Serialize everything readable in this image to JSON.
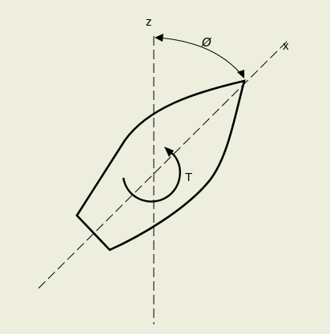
{
  "diagram": {
    "labels": {
      "z_axis": "z",
      "x_axis": "x",
      "angle": "Ø",
      "torque": "T"
    },
    "colors": {
      "background": "#eeeede",
      "ink": "#000000"
    }
  }
}
